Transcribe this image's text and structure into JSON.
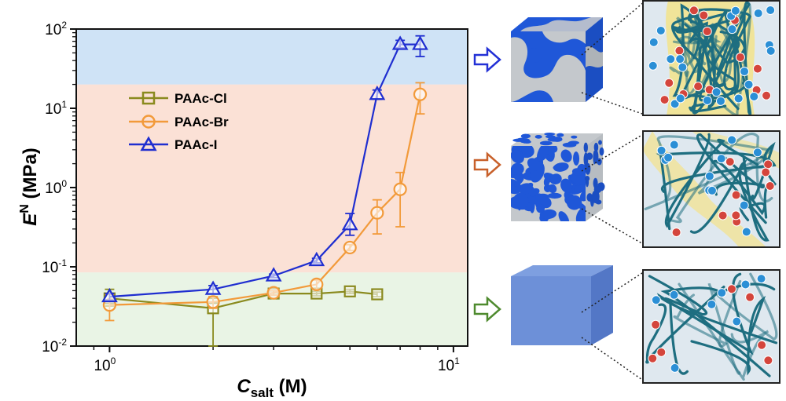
{
  "chart_data": {
    "type": "line",
    "x_scale": "log",
    "y_scale": "log",
    "xlim": [
      0.8,
      11
    ],
    "ylim": [
      0.01,
      100
    ],
    "x_ticks": [
      {
        "base": "10",
        "exp": "0",
        "value": 1
      },
      {
        "base": "10",
        "exp": "1",
        "value": 10
      }
    ],
    "y_ticks": [
      {
        "base": "10",
        "exp": "-2",
        "value": 0.01
      },
      {
        "base": "10",
        "exp": "-1",
        "value": 0.1
      },
      {
        "base": "10",
        "exp": "0",
        "value": 1
      },
      {
        "base": "10",
        "exp": "1",
        "value": 10
      },
      {
        "base": "10",
        "exp": "2",
        "value": 100
      }
    ],
    "xlabel": {
      "main": "C",
      "sub": "salt",
      "unit": " (M)"
    },
    "ylabel": {
      "main": "E",
      "sup": "N",
      "unit": " (MPa)"
    },
    "legend_position": "top-left",
    "bands": [
      {
        "from": 0.01,
        "to": 0.085,
        "color": "#e9f4e5"
      },
      {
        "from": 0.085,
        "to": 20,
        "color": "#fbe1d6"
      },
      {
        "from": 20,
        "to": 100,
        "color": "#cfe3f6"
      }
    ],
    "series": [
      {
        "name": "PAAc-Cl",
        "color": "#8a8a1e",
        "marker": "square",
        "x": [
          1,
          2,
          3,
          4,
          5,
          6
        ],
        "y": [
          0.04,
          0.03,
          0.046,
          0.046,
          0.049,
          0.045
        ],
        "err_low": [
          0.032,
          0.01,
          0.043,
          0.043,
          0.046,
          0.042
        ],
        "err_high": [
          0.052,
          0.04,
          0.049,
          0.049,
          0.052,
          0.048
        ]
      },
      {
        "name": "PAAc-Br",
        "color": "#f29a3a",
        "marker": "circle",
        "x": [
          1,
          2,
          3,
          4,
          5,
          6,
          7,
          8
        ],
        "y": [
          0.033,
          0.036,
          0.047,
          0.06,
          0.175,
          0.48,
          0.95,
          15
        ],
        "err_low": [
          0.021,
          0.03,
          0.044,
          0.052,
          0.16,
          0.26,
          0.32,
          8.5
        ],
        "err_high": [
          0.045,
          0.042,
          0.05,
          0.068,
          0.19,
          0.7,
          1.55,
          21
        ]
      },
      {
        "name": "PAAc-I",
        "color": "#1f2ed0",
        "marker": "triangle",
        "x": [
          1,
          2,
          3,
          4,
          5,
          6,
          7,
          8
        ],
        "y": [
          0.042,
          0.052,
          0.077,
          0.12,
          0.34,
          15,
          64,
          64
        ],
        "err_low": [
          0.038,
          0.046,
          0.073,
          0.112,
          0.25,
          13,
          58,
          45
        ],
        "err_high": [
          0.046,
          0.058,
          0.081,
          0.128,
          0.47,
          17,
          72,
          82
        ]
      }
    ]
  },
  "schematics": [
    {
      "arrow_color": "#2230d6",
      "cube_pattern": "coarse",
      "panel": "dense"
    },
    {
      "arrow_color": "#c8602a",
      "cube_pattern": "fine",
      "panel": "intermediate"
    },
    {
      "arrow_color": "#4e8a2e",
      "cube_pattern": "none",
      "panel": "dilute"
    }
  ],
  "colors": {
    "cube_blue": "#1f57d8",
    "cube_gray": "#c4c8cc",
    "panel_bg": "#dfe8ef",
    "chain": "#1e6e80",
    "polymer_rich": "#f3e38a",
    "ion_cation": "#d4453c",
    "ion_anion": "#2b8fd6"
  }
}
